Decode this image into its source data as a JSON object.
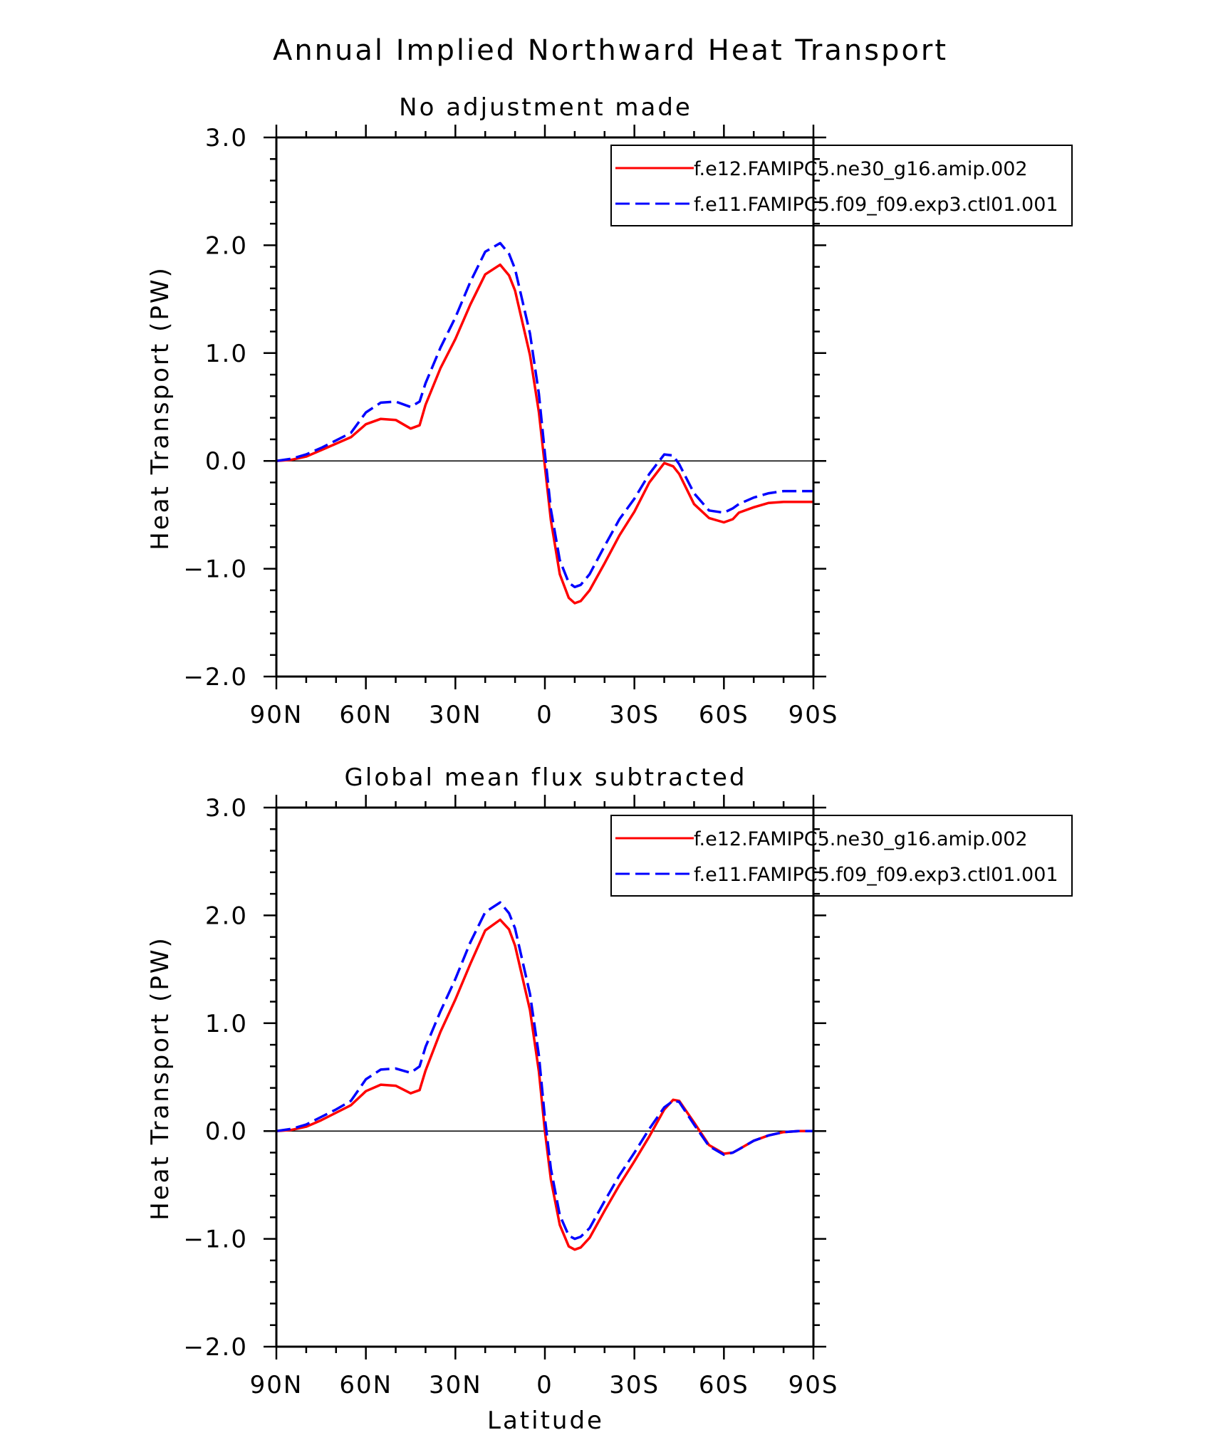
{
  "title": "Annual Implied Northward Heat Transport",
  "x_axis_label": "Latitude",
  "y_axis_label": "Heat Transport (PW)",
  "chart_data": [
    {
      "type": "line",
      "subtitle": "No adjustment made",
      "xlabel": "",
      "ylabel": "Heat Transport (PW)",
      "xlim": [
        90,
        -90
      ],
      "ylim": [
        -2.0,
        3.0
      ],
      "x_ticks": [
        90,
        60,
        30,
        0,
        -30,
        -60,
        -90
      ],
      "x_tick_labels": [
        "90N",
        "60N",
        "30N",
        "0",
        "30S",
        "60S",
        "90S"
      ],
      "y_ticks": [
        3.0,
        2.0,
        1.0,
        0.0,
        -1.0,
        -2.0
      ],
      "y_tick_labels": [
        "3.0",
        "2.0",
        "1.0",
        "0.0",
        "−1.0",
        "−2.0"
      ],
      "legend_position": "top-right",
      "series": [
        {
          "name": "f.e12.FAMIPC5.ne30_g16.amip.002",
          "color": "#ff0000",
          "dash": "solid",
          "x": [
            90,
            85,
            80,
            75,
            70,
            65,
            60,
            55,
            50,
            45,
            42,
            40,
            35,
            30,
            25,
            20,
            15,
            12,
            10,
            5,
            2,
            0,
            -2,
            -5,
            -8,
            -10,
            -12,
            -15,
            -20,
            -25,
            -30,
            -35,
            -40,
            -43,
            -45,
            -50,
            -55,
            -60,
            -63,
            -65,
            -70,
            -75,
            -80,
            -85,
            -90
          ],
          "y": [
            0.0,
            0.01,
            0.04,
            0.1,
            0.16,
            0.22,
            0.34,
            0.39,
            0.38,
            0.3,
            0.33,
            0.52,
            0.86,
            1.13,
            1.45,
            1.73,
            1.82,
            1.72,
            1.58,
            0.98,
            0.45,
            -0.05,
            -0.55,
            -1.05,
            -1.27,
            -1.32,
            -1.3,
            -1.2,
            -0.95,
            -0.69,
            -0.47,
            -0.2,
            -0.02,
            -0.05,
            -0.12,
            -0.4,
            -0.53,
            -0.57,
            -0.54,
            -0.48,
            -0.43,
            -0.39,
            -0.38,
            -0.38,
            -0.38
          ]
        },
        {
          "name": "f.e11.FAMIPC5.f09_f09.exp3.ctl01.001",
          "color": "#0000ff",
          "dash": "dashed",
          "x": [
            90,
            85,
            80,
            75,
            70,
            65,
            60,
            55,
            50,
            45,
            42,
            40,
            35,
            30,
            25,
            20,
            15,
            12,
            10,
            5,
            2,
            0,
            -2,
            -5,
            -8,
            -10,
            -12,
            -15,
            -20,
            -25,
            -30,
            -35,
            -40,
            -43,
            -45,
            -50,
            -55,
            -60,
            -63,
            -65,
            -70,
            -75,
            -80,
            -85,
            -90
          ],
          "y": [
            0.0,
            0.02,
            0.06,
            0.12,
            0.19,
            0.26,
            0.45,
            0.54,
            0.55,
            0.5,
            0.55,
            0.72,
            1.05,
            1.33,
            1.66,
            1.94,
            2.02,
            1.92,
            1.78,
            1.18,
            0.62,
            0.07,
            -0.45,
            -0.92,
            -1.13,
            -1.17,
            -1.15,
            -1.05,
            -0.79,
            -0.54,
            -0.35,
            -0.12,
            0.06,
            0.05,
            -0.03,
            -0.3,
            -0.46,
            -0.48,
            -0.44,
            -0.4,
            -0.34,
            -0.3,
            -0.28,
            -0.28,
            -0.28
          ]
        }
      ]
    },
    {
      "type": "line",
      "subtitle": "Global mean flux subtracted",
      "xlabel": "Latitude",
      "ylabel": "Heat Transport (PW)",
      "xlim": [
        90,
        -90
      ],
      "ylim": [
        -2.0,
        3.0
      ],
      "x_ticks": [
        90,
        60,
        30,
        0,
        -30,
        -60,
        -90
      ],
      "x_tick_labels": [
        "90N",
        "60N",
        "30N",
        "0",
        "30S",
        "60S",
        "90S"
      ],
      "y_ticks": [
        3.0,
        2.0,
        1.0,
        0.0,
        -1.0,
        -2.0
      ],
      "y_tick_labels": [
        "3.0",
        "2.0",
        "1.0",
        "0.0",
        "−1.0",
        "−2.0"
      ],
      "legend_position": "top-right",
      "series": [
        {
          "name": "f.e12.FAMIPC5.ne30_g16.amip.002",
          "color": "#ff0000",
          "dash": "solid",
          "x": [
            90,
            85,
            80,
            75,
            70,
            65,
            60,
            55,
            50,
            45,
            42,
            40,
            35,
            30,
            25,
            20,
            15,
            12,
            10,
            5,
            2,
            0,
            -2,
            -5,
            -8,
            -10,
            -12,
            -15,
            -20,
            -25,
            -30,
            -35,
            -40,
            -43,
            -45,
            -50,
            -55,
            -60,
            -63,
            -65,
            -70,
            -75,
            -80,
            -85,
            -90
          ],
          "y": [
            0.0,
            0.01,
            0.04,
            0.1,
            0.17,
            0.24,
            0.37,
            0.43,
            0.42,
            0.35,
            0.38,
            0.56,
            0.92,
            1.22,
            1.55,
            1.86,
            1.96,
            1.87,
            1.72,
            1.12,
            0.55,
            0.0,
            -0.45,
            -0.87,
            -1.07,
            -1.1,
            -1.08,
            -0.99,
            -0.74,
            -0.5,
            -0.28,
            -0.05,
            0.2,
            0.29,
            0.28,
            0.08,
            -0.13,
            -0.21,
            -0.2,
            -0.17,
            -0.09,
            -0.04,
            -0.01,
            0.0,
            0.0
          ]
        },
        {
          "name": "f.e11.FAMIPC5.f09_f09.exp3.ctl01.001",
          "color": "#0000ff",
          "dash": "dashed",
          "x": [
            90,
            85,
            80,
            75,
            70,
            65,
            60,
            55,
            50,
            45,
            42,
            40,
            35,
            30,
            25,
            20,
            15,
            12,
            10,
            5,
            2,
            0,
            -2,
            -5,
            -8,
            -10,
            -12,
            -15,
            -20,
            -25,
            -30,
            -35,
            -40,
            -43,
            -45,
            -50,
            -55,
            -60,
            -63,
            -65,
            -70,
            -75,
            -80,
            -85,
            -90
          ],
          "y": [
            0.0,
            0.02,
            0.06,
            0.13,
            0.2,
            0.28,
            0.48,
            0.57,
            0.58,
            0.54,
            0.6,
            0.78,
            1.11,
            1.41,
            1.75,
            2.03,
            2.12,
            2.02,
            1.88,
            1.27,
            0.7,
            0.12,
            -0.35,
            -0.78,
            -0.97,
            -1.0,
            -0.98,
            -0.9,
            -0.65,
            -0.41,
            -0.2,
            0.02,
            0.22,
            0.28,
            0.27,
            0.06,
            -0.14,
            -0.22,
            -0.2,
            -0.17,
            -0.09,
            -0.04,
            -0.01,
            0.0,
            0.0
          ]
        }
      ]
    }
  ]
}
